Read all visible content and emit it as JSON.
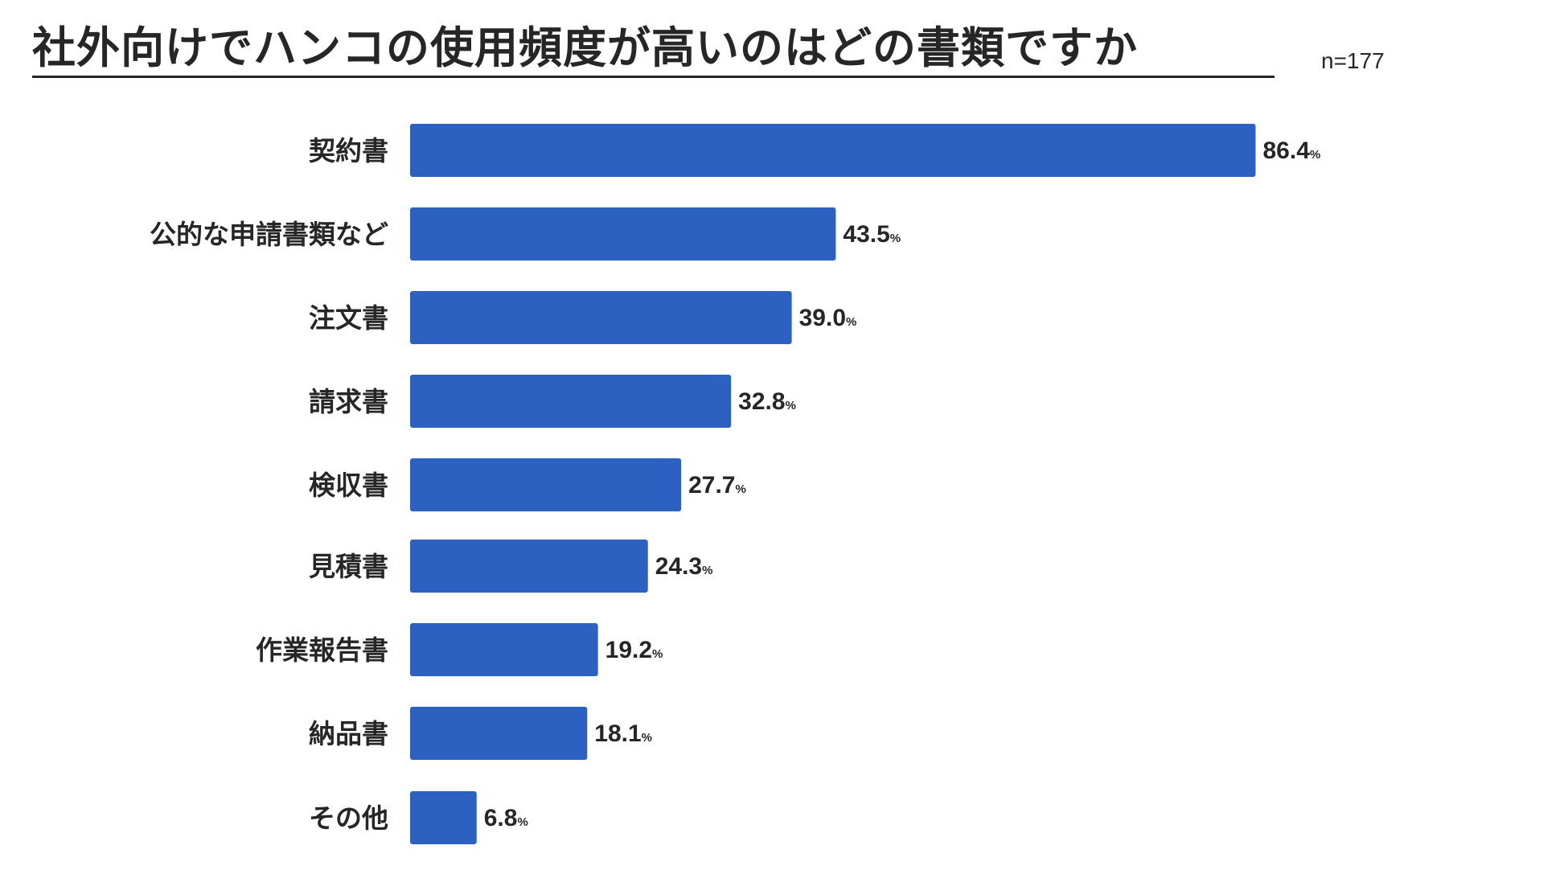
{
  "title": "社外向けでハンコの使用頻度が高いのはどの書類ですか",
  "sample_size": "n=177",
  "colors": {
    "bar": "#2c61c2",
    "text": "#262626"
  },
  "chart_data": {
    "type": "bar",
    "orientation": "horizontal",
    "title": "社外向けでハンコの使用頻度が高いのはどの書類ですか",
    "categories": [
      "契約書",
      "公的な申請書類など",
      "注文書",
      "請求書",
      "検収書",
      "見積書",
      "作業報告書",
      "納品書",
      "その他"
    ],
    "values": [
      86.4,
      43.5,
      39.0,
      32.8,
      27.7,
      24.3,
      19.2,
      18.1,
      6.8
    ],
    "value_labels": [
      "86.4",
      "43.5",
      "39.0",
      "32.8",
      "27.7",
      "24.3",
      "19.2",
      "18.1",
      "6.8"
    ],
    "unit": "%",
    "xlim": [
      0,
      100
    ],
    "grid": false,
    "legend": "none"
  }
}
